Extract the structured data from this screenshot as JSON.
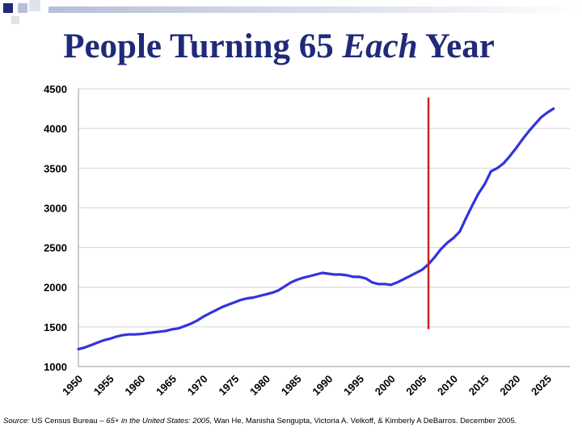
{
  "title": {
    "pre": "People Turning 65 ",
    "em": "Each",
    "post": " Year"
  },
  "chart_data": {
    "type": "line",
    "title": "People Turning 65 Each Year",
    "xlabel": "",
    "ylabel": "",
    "xlim": [
      1950,
      2025
    ],
    "ylim": [
      1000,
      4500
    ],
    "yticks": [
      1000,
      1500,
      2000,
      2500,
      3000,
      3500,
      4000,
      4500
    ],
    "xticks": [
      "1950",
      "1955",
      "1960",
      "1965",
      "1970",
      "1975",
      "1980",
      "1985",
      "1990",
      "1995",
      "2000",
      "2005",
      "2010",
      "2015",
      "2020",
      "2025"
    ],
    "grid": "horizontal",
    "line_color": "#3333dd",
    "marker_color": "#cc2222",
    "marker_x": 2006,
    "marker_y_range": [
      1470,
      4390
    ],
    "series": [
      {
        "name": "People turning 65",
        "x": [
          1950,
          1951,
          1952,
          1953,
          1954,
          1955,
          1956,
          1957,
          1958,
          1959,
          1960,
          1961,
          1962,
          1963,
          1964,
          1965,
          1966,
          1967,
          1968,
          1969,
          1970,
          1971,
          1972,
          1973,
          1974,
          1975,
          1976,
          1977,
          1978,
          1979,
          1980,
          1981,
          1982,
          1983,
          1984,
          1985,
          1986,
          1987,
          1988,
          1989,
          1990,
          1991,
          1992,
          1993,
          1994,
          1995,
          1996,
          1997,
          1998,
          1999,
          2000,
          2001,
          2002,
          2003,
          2004,
          2005,
          2006,
          2007,
          2008,
          2009,
          2010,
          2011,
          2012,
          2013,
          2014,
          2015,
          2016,
          2017,
          2018,
          2019,
          2020,
          2021,
          2022,
          2023,
          2024,
          2025,
          2026
        ],
        "values": [
          1220,
          1240,
          1270,
          1300,
          1330,
          1350,
          1375,
          1395,
          1405,
          1405,
          1410,
          1420,
          1430,
          1440,
          1450,
          1470,
          1480,
          1510,
          1540,
          1580,
          1630,
          1670,
          1710,
          1750,
          1780,
          1810,
          1840,
          1860,
          1870,
          1890,
          1910,
          1930,
          1960,
          2010,
          2060,
          2095,
          2120,
          2140,
          2160,
          2180,
          2170,
          2160,
          2160,
          2150,
          2130,
          2130,
          2110,
          2060,
          2040,
          2040,
          2030,
          2060,
          2100,
          2140,
          2180,
          2220,
          2290,
          2380,
          2480,
          2560,
          2620,
          2700,
          2870,
          3030,
          3180,
          3300,
          3460,
          3500,
          3560,
          3650,
          3750,
          3860,
          3960,
          4050,
          4140,
          4200,
          4250
        ]
      }
    ]
  },
  "source": {
    "label": "Source:",
    "pre": " US Census Bureau – ",
    "pub": "65+ in the United States: 2005",
    "post": ", Wan He, Manisha Sengupta, Victoria A. Velkoff, & Kimberly A DeBarros.  December 2005."
  }
}
